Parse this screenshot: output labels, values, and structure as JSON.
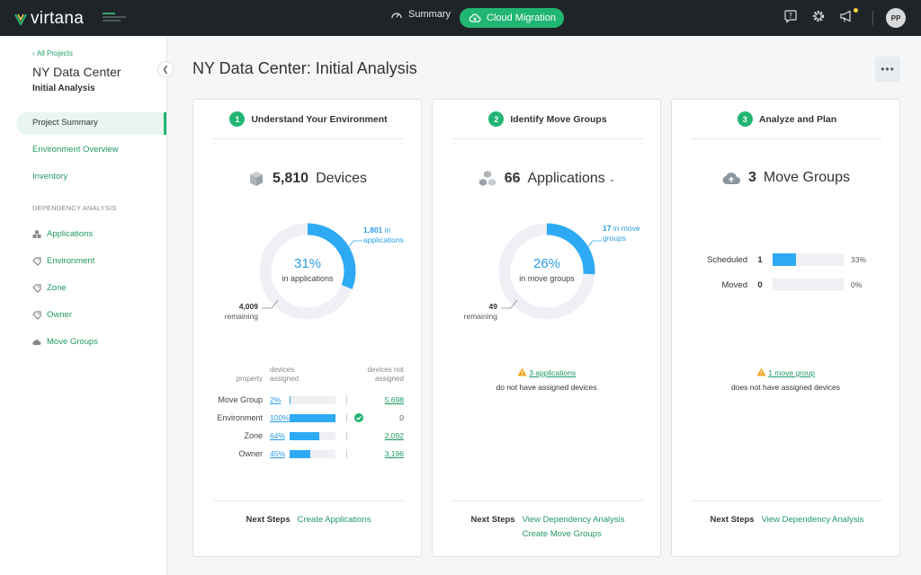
{
  "brand": {
    "name": "virtana",
    "accent": "#21b573",
    "chart_blue": "#2eaaf5"
  },
  "topbar": {
    "summary_label": "Summary",
    "cloud_migration_label": "Cloud Migration",
    "avatar_initials": "PP",
    "icons": [
      "help-icon",
      "gear-icon",
      "megaphone-icon"
    ]
  },
  "sidebar": {
    "back_link": "All Projects",
    "project_title": "NY Data Center",
    "project_subtitle": "Initial Analysis",
    "items": [
      {
        "label": "Project Summary",
        "active": true
      },
      {
        "label": "Environment Overview"
      },
      {
        "label": "Inventory"
      }
    ],
    "section_label": "DEPENDENCY ANALYSIS",
    "dep_items": [
      {
        "label": "Applications",
        "icon": "applications-icon"
      },
      {
        "label": "Environment",
        "icon": "tag-icon"
      },
      {
        "label": "Zone",
        "icon": "tag-icon"
      },
      {
        "label": "Owner",
        "icon": "tag-icon"
      },
      {
        "label": "Move Groups",
        "icon": "cloud-icon"
      }
    ]
  },
  "main": {
    "title": "NY Data Center: Initial Analysis",
    "more_label": "•••"
  },
  "cards": [
    {
      "step": "1",
      "title": "Understand Your Environment",
      "stat_value": "5,810",
      "stat_label": "Devices",
      "donut": {
        "percent": 31,
        "pct_label": "31%",
        "sub_label": "in applications",
        "assigned_value": "1,801",
        "assigned_text1": " in",
        "assigned_text2": "applications",
        "remaining_value": "4,009",
        "remaining_text": "remaining"
      },
      "breakdown": {
        "head_property": "property",
        "head_assigned": "devices assigned",
        "head_not_assigned": "devices not assigned",
        "rows": [
          {
            "label": "Move Group",
            "pct": "2%",
            "fill": 2,
            "not_assigned": "5,698"
          },
          {
            "label": "Environment",
            "pct": "100%",
            "fill": 100,
            "not_assigned": "0",
            "check": true
          },
          {
            "label": "Zone",
            "pct": "64%",
            "fill": 64,
            "not_assigned": "2,092"
          },
          {
            "label": "Owner",
            "pct": "45%",
            "fill": 45,
            "not_assigned": "3,196"
          }
        ]
      },
      "next_steps_label": "Next Steps",
      "next_steps": [
        "Create Applications"
      ]
    },
    {
      "step": "2",
      "title": "Identify Move Groups",
      "stat_value": "66",
      "stat_label": "Applications",
      "donut": {
        "percent": 26,
        "pct_label": "26%",
        "sub_label": "in move groups",
        "assigned_value": "17",
        "assigned_text1": " in move",
        "assigned_text2": "groups",
        "remaining_value": "49",
        "remaining_text": "remaining"
      },
      "warning": {
        "link": "3 applications",
        "text": "do not have assigned devices"
      },
      "next_steps_label": "Next Steps",
      "next_steps": [
        "View Dependency Analysis",
        "Create Move Groups"
      ]
    },
    {
      "step": "3",
      "title": "Analyze and Plan",
      "stat_value": "3",
      "stat_label": "Move Groups",
      "move_groups": [
        {
          "label": "Scheduled",
          "count": "1",
          "fill": 33,
          "pct": "33%"
        },
        {
          "label": "Moved",
          "count": "0",
          "fill": 0,
          "pct": "0%"
        }
      ],
      "warning": {
        "link": "1 move group",
        "text": "does not have assigned devices"
      },
      "next_steps_label": "Next Steps",
      "next_steps": [
        "View Dependency Analysis"
      ]
    }
  ]
}
